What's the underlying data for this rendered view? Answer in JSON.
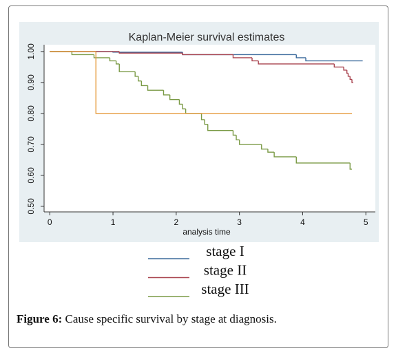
{
  "chart_data": {
    "type": "line",
    "step": true,
    "title": "Kaplan-Meier survival estimates",
    "xlabel": "analysis time",
    "xlim": [
      -0.09,
      5.15
    ],
    "ylim": [
      0.482,
      1.022
    ],
    "xticks": [
      0,
      1,
      2,
      3,
      4,
      5
    ],
    "yticks": [
      {
        "value": 0.5,
        "label": "0.50"
      },
      {
        "value": 0.6,
        "label": "0.60"
      },
      {
        "value": 0.7,
        "label": "0.70"
      },
      {
        "value": 0.8,
        "label": "0.80"
      },
      {
        "value": 0.9,
        "label": "0.90"
      },
      {
        "value": 1.0,
        "label": "1.00"
      }
    ],
    "grid": false,
    "legend": "bottom",
    "series": [
      {
        "name": "stage I",
        "color": "#3b6a9c",
        "x": [
          0,
          1.0,
          2.1,
          3.9,
          4.05,
          4.95
        ],
        "values": [
          1.0,
          0.998,
          0.99,
          0.98,
          0.97,
          0.97
        ]
      },
      {
        "name": "stage II",
        "color": "#a9434f",
        "x": [
          0,
          1.1,
          2.1,
          2.9,
          3.2,
          3.3,
          4.5,
          4.65,
          4.7,
          4.72,
          4.75,
          4.78,
          4.8
        ],
        "values": [
          1.0,
          0.995,
          0.99,
          0.98,
          0.97,
          0.96,
          0.95,
          0.94,
          0.93,
          0.92,
          0.91,
          0.9,
          0.9
        ]
      },
      {
        "name": "stage III",
        "color": "#7a9a45",
        "x": [
          0,
          0.35,
          0.7,
          0.95,
          1.05,
          1.1,
          1.35,
          1.4,
          1.45,
          1.55,
          1.8,
          1.9,
          2.05,
          2.1,
          2.15,
          2.4,
          2.45,
          2.5,
          2.9,
          2.95,
          3.0,
          3.35,
          3.45,
          3.55,
          3.9,
          4.75,
          4.78
        ],
        "values": [
          1.0,
          0.99,
          0.98,
          0.97,
          0.96,
          0.935,
          0.92,
          0.905,
          0.89,
          0.875,
          0.86,
          0.845,
          0.83,
          0.815,
          0.8,
          0.78,
          0.765,
          0.745,
          0.73,
          0.715,
          0.7,
          0.685,
          0.675,
          0.66,
          0.64,
          0.62,
          0.62
        ]
      },
      {
        "color": "#e59a3c",
        "x": [
          0,
          0.73,
          4.78
        ],
        "values": [
          1.0,
          0.8,
          0.8
        ]
      }
    ]
  },
  "caption": {
    "label": "Figure 6:",
    "text": "Cause specific survival by stage at diagnosis."
  }
}
